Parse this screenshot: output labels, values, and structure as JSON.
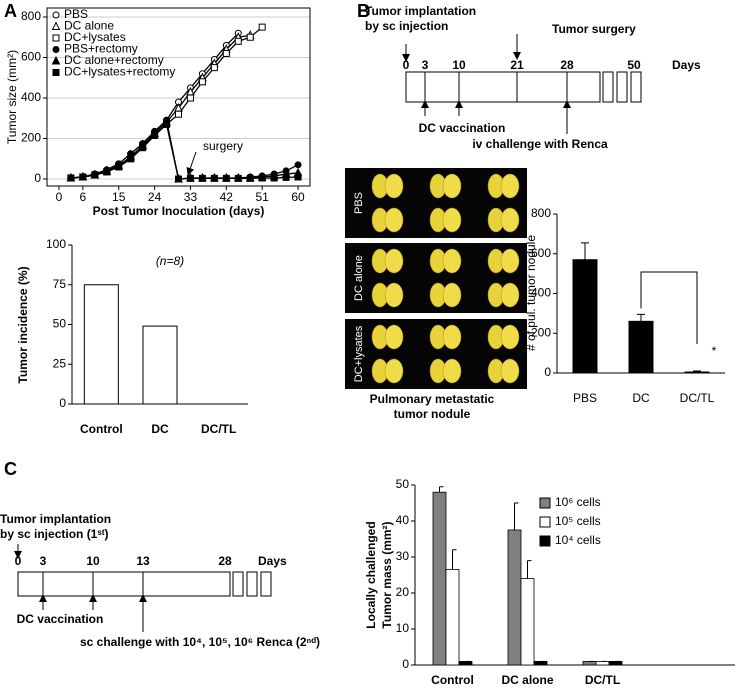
{
  "panel_labels": [
    "A",
    "B",
    "C"
  ],
  "chart_data": [
    {
      "type": "line",
      "ylabel": "Tumor size (mm²)",
      "xlabel": "Post Tumor Inoculation (days)",
      "annotation": "surgery",
      "x": [
        3,
        6,
        9,
        12,
        15,
        18,
        21,
        24,
        27,
        30,
        33,
        36,
        39,
        42,
        45,
        48,
        51,
        54,
        57,
        60
      ],
      "xlim": [
        -3,
        63
      ],
      "xticks": [
        0,
        6,
        15,
        24,
        33,
        42,
        51,
        60
      ],
      "ylim": [
        0,
        800
      ],
      "yticks": [
        0,
        200,
        400,
        600,
        800
      ],
      "grid": true,
      "series": [
        {
          "name": "PBS",
          "marker": "circle",
          "filled": false,
          "color": "#000000",
          "values": [
            5,
            10,
            25,
            45,
            75,
            125,
            175,
            235,
            290,
            380,
            450,
            520,
            590,
            660,
            720,
            null,
            null,
            null,
            null,
            null
          ]
        },
        {
          "name": "DC alone",
          "marker": "triangle",
          "filled": false,
          "color": "#000000",
          "values": [
            5,
            10,
            20,
            40,
            65,
            110,
            165,
            225,
            280,
            350,
            430,
            500,
            570,
            640,
            700,
            710,
            null,
            null,
            null,
            null
          ]
        },
        {
          "name": "DC+lysates",
          "marker": "square",
          "filled": false,
          "color": "#000000",
          "values": [
            5,
            10,
            20,
            35,
            60,
            100,
            155,
            215,
            270,
            320,
            400,
            480,
            550,
            620,
            680,
            700,
            750,
            null,
            null,
            null
          ]
        },
        {
          "name": "PBS+rectomy",
          "marker": "circle",
          "filled": true,
          "color": "#000000",
          "values": [
            5,
            10,
            25,
            45,
            75,
            125,
            175,
            235,
            290,
            0,
            5,
            5,
            5,
            5,
            5,
            10,
            15,
            25,
            40,
            70
          ]
        },
        {
          "name": "DC alone+rectomy",
          "marker": "triangle",
          "filled": true,
          "color": "#000000",
          "values": [
            5,
            10,
            20,
            40,
            65,
            110,
            165,
            225,
            280,
            0,
            5,
            5,
            5,
            5,
            5,
            5,
            10,
            15,
            25,
            30
          ]
        },
        {
          "name": "DC+lysates+rectomy",
          "marker": "square",
          "filled": true,
          "color": "#000000",
          "values": [
            5,
            10,
            20,
            35,
            60,
            100,
            155,
            215,
            270,
            0,
            3,
            3,
            3,
            3,
            3,
            3,
            5,
            5,
            8,
            10
          ]
        }
      ]
    },
    {
      "type": "bar",
      "ylabel": "Tumor incidence (%)",
      "annotation": "(n=8)",
      "categories": [
        "Control",
        "DC",
        "DC/TL"
      ],
      "values": [
        75,
        49,
        0
      ],
      "color": "#ffffff",
      "ylim": [
        0,
        100
      ],
      "yticks": [
        0,
        25,
        50,
        75,
        100
      ]
    },
    {
      "type": "bar",
      "ylabel": "# of pul. tumor nodule",
      "annotation": "*",
      "categories": [
        "PBS",
        "DC",
        "DC/TL"
      ],
      "values": [
        570,
        260,
        5
      ],
      "errors": [
        85,
        35,
        5
      ],
      "color": "#000000",
      "ylim": [
        0,
        800
      ],
      "yticks": [
        0,
        200,
        400,
        600,
        800
      ]
    },
    {
      "type": "grouped-bar",
      "ylabel": [
        "Locally challenged",
        "Tumor mass (mm²)"
      ],
      "categories": [
        "Control",
        "DC alone",
        "DC/TL"
      ],
      "ylim": [
        0,
        50
      ],
      "yticks": [
        0,
        10,
        20,
        30,
        40,
        50
      ],
      "series": [
        {
          "name": "10⁶ cells",
          "color": "#808080",
          "values": [
            48,
            37.5,
            1
          ],
          "errors": [
            1.5,
            7.5,
            0
          ]
        },
        {
          "name": "10⁵ cells",
          "color": "#ffffff",
          "values": [
            26.5,
            24,
            1
          ],
          "errors": [
            5.5,
            5,
            0
          ]
        },
        {
          "name": "10⁴ cells",
          "color": "#000000",
          "values": [
            1,
            1,
            1
          ],
          "errors": [
            0,
            0,
            0
          ]
        }
      ]
    }
  ],
  "timelines": [
    {
      "title": [
        "Tumor implantation",
        "by sc injection"
      ],
      "ticks": [
        "0",
        "3",
        "10",
        "21",
        "28",
        "50"
      ],
      "unit": "Days",
      "events": [
        "Tumor surgery",
        "DC vaccination",
        "iv challenge with Renca"
      ]
    },
    {
      "title": [
        "Tumor implantation",
        "by sc injection (1ˢᵗ)"
      ],
      "ticks": [
        "0",
        "3",
        "10",
        "13",
        "28"
      ],
      "unit": "Days",
      "events": [
        "DC vaccination",
        "sc challenge with 10⁴, 10⁵, 10⁶ Renca (2ⁿᵈ)"
      ]
    }
  ],
  "images": {
    "rows": [
      "PBS",
      "DC alone",
      "DC+lysates"
    ],
    "caption": [
      "Pulmonary metastatic",
      "tumor nodule"
    ]
  }
}
